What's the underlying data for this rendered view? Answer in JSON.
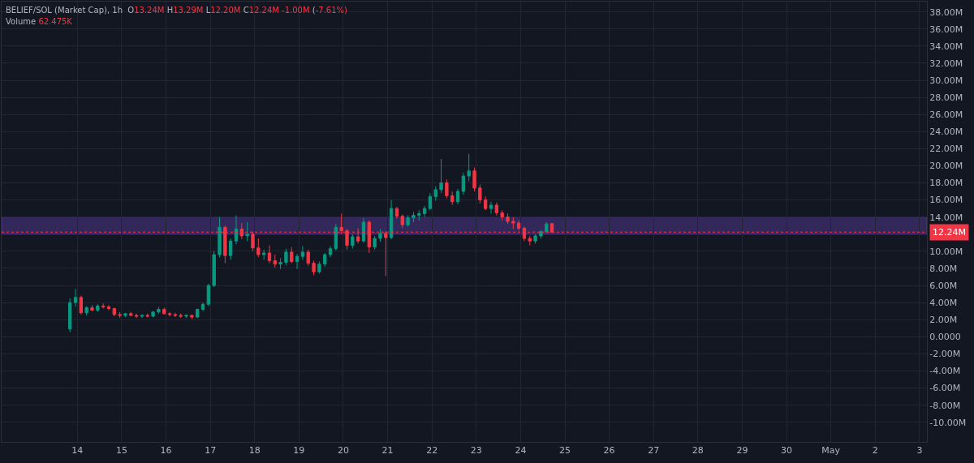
{
  "chart_data": {
    "type": "candlestick",
    "title": "BELIEF/SOL (Market Cap), 1h",
    "annotations": [
      "O13.24M H13.29M L12.20M C12.24M -1.00M (-7.61%)",
      "Volume 62.475K"
    ],
    "x": [
      "--04-13T20:00",
      "--04-13T23:00",
      "--04-14T02:00",
      "--04-14T05:00",
      "--04-14T08:00",
      "--04-14T11:00",
      "--04-14T14:00",
      "--04-14T17:00",
      "--04-14T20:00",
      "--04-14T23:00",
      "--04-15T02:00",
      "--04-15T05:00",
      "--04-15T08:00",
      "--04-15T11:00",
      "--04-15T14:00",
      "--04-15T17:00",
      "--04-15T20:00",
      "--04-15T23:00",
      "--04-16T02:00",
      "--04-16T05:00",
      "--04-16T08:00",
      "--04-16T11:00",
      "--04-16T14:00",
      "--04-16T17:00",
      "--04-16T20:00",
      "--04-16T23:00",
      "--04-17T02:00",
      "--04-17T05:00",
      "--04-17T08:00",
      "--04-17T11:00",
      "--04-17T14:00",
      "--04-17T17:00",
      "--04-17T20:00",
      "--04-17T23:00",
      "--04-18T02:00",
      "--04-18T05:00",
      "--04-18T08:00",
      "--04-18T11:00",
      "--04-18T14:00",
      "--04-18T17:00",
      "--04-18T20:00",
      "--04-18T23:00",
      "--04-19T02:00",
      "--04-19T05:00",
      "--04-19T08:00",
      "--04-19T11:00",
      "--04-19T14:00",
      "--04-19T17:00",
      "--04-19T20:00",
      "--04-19T23:00",
      "--04-20T02:00",
      "--04-20T05:00",
      "--04-20T08:00",
      "--04-20T11:00",
      "--04-20T14:00",
      "--04-20T17:00",
      "--04-20T20:00",
      "--04-20T23:00",
      "--04-21T02:00",
      "--04-21T05:00",
      "--04-21T08:00",
      "--04-21T11:00",
      "--04-21T14:00",
      "--04-21T17:00",
      "--04-21T20:00",
      "--04-21T23:00",
      "--04-22T02:00",
      "--04-22T05:00",
      "--04-22T08:00",
      "--04-22T11:00",
      "--04-22T14:00",
      "--04-22T17:00",
      "--04-22T20:00",
      "--04-22T23:00",
      "--04-23T02:00",
      "--04-23T05:00",
      "--04-23T08:00",
      "--04-23T11:00",
      "--04-23T14:00",
      "--04-23T17:00",
      "--04-23T20:00",
      "--04-23T23:00",
      "--04-24T02:00",
      "--04-24T05:00",
      "--04-24T08:00",
      "--04-24T11:00",
      "--04-24T14:00",
      "--04-24T17:00"
    ],
    "ohlc": [
      [
        0.9,
        4.5,
        0.5,
        4.0
      ],
      [
        4.0,
        5.6,
        3.5,
        4.6
      ],
      [
        4.6,
        4.8,
        2.6,
        2.8
      ],
      [
        2.8,
        3.6,
        2.5,
        3.4
      ],
      [
        3.4,
        3.7,
        3.0,
        3.1
      ],
      [
        3.1,
        3.8,
        2.9,
        3.6
      ],
      [
        3.6,
        3.9,
        3.3,
        3.5
      ],
      [
        3.5,
        3.7,
        3.1,
        3.3
      ],
      [
        3.3,
        3.4,
        2.4,
        2.6
      ],
      [
        2.6,
        2.9,
        2.2,
        2.5
      ],
      [
        2.5,
        2.8,
        2.3,
        2.7
      ],
      [
        2.7,
        2.9,
        2.4,
        2.5
      ],
      [
        2.5,
        2.7,
        2.2,
        2.4
      ],
      [
        2.4,
        2.6,
        2.2,
        2.5
      ],
      [
        2.5,
        2.7,
        2.3,
        2.4
      ],
      [
        2.4,
        3.0,
        2.3,
        2.9
      ],
      [
        2.9,
        3.5,
        2.7,
        3.2
      ],
      [
        3.2,
        3.4,
        2.6,
        2.7
      ],
      [
        2.7,
        2.9,
        2.4,
        2.6
      ],
      [
        2.6,
        2.8,
        2.3,
        2.5
      ],
      [
        2.5,
        2.7,
        2.2,
        2.4
      ],
      [
        2.4,
        2.6,
        2.2,
        2.5
      ],
      [
        2.5,
        2.6,
        2.1,
        2.3
      ],
      [
        2.3,
        3.3,
        2.2,
        3.2
      ],
      [
        3.2,
        4.0,
        3.0,
        3.8
      ],
      [
        3.8,
        6.2,
        3.6,
        6.0
      ],
      [
        6.0,
        10.0,
        5.8,
        9.6
      ],
      [
        9.6,
        14.0,
        9.3,
        12.8
      ],
      [
        12.8,
        13.0,
        8.6,
        9.5
      ],
      [
        9.5,
        11.5,
        9.0,
        11.2
      ],
      [
        11.2,
        14.2,
        10.8,
        12.6
      ],
      [
        12.6,
        13.3,
        11.4,
        11.8
      ],
      [
        11.8,
        13.4,
        11.2,
        12.0
      ],
      [
        12.0,
        12.3,
        10.0,
        10.4
      ],
      [
        10.4,
        11.5,
        9.3,
        9.6
      ],
      [
        9.6,
        10.2,
        9.0,
        9.8
      ],
      [
        9.8,
        10.7,
        8.6,
        8.9
      ],
      [
        8.9,
        9.6,
        8.1,
        8.5
      ],
      [
        8.5,
        9.2,
        7.9,
        8.7
      ],
      [
        8.7,
        10.3,
        8.4,
        9.9
      ],
      [
        9.9,
        10.5,
        8.6,
        8.8
      ],
      [
        8.8,
        9.7,
        7.9,
        9.4
      ],
      [
        9.4,
        10.6,
        9.0,
        9.9
      ],
      [
        9.9,
        10.2,
        8.3,
        8.6
      ],
      [
        8.6,
        8.9,
        7.2,
        7.6
      ],
      [
        7.6,
        8.8,
        7.4,
        8.5
      ],
      [
        8.5,
        9.8,
        8.2,
        9.6
      ],
      [
        9.6,
        10.6,
        9.3,
        10.3
      ],
      [
        10.3,
        13.2,
        10.1,
        12.8
      ],
      [
        12.8,
        14.4,
        12.0,
        12.4
      ],
      [
        12.4,
        12.6,
        10.2,
        10.7
      ],
      [
        10.7,
        12.0,
        10.3,
        11.7
      ],
      [
        11.7,
        12.7,
        10.9,
        11.2
      ],
      [
        11.2,
        13.9,
        11.0,
        13.4
      ],
      [
        13.4,
        13.6,
        9.8,
        10.5
      ],
      [
        10.5,
        11.8,
        10.2,
        11.5
      ],
      [
        11.5,
        12.6,
        11.1,
        12.1
      ],
      [
        12.1,
        12.4,
        7.1,
        11.6
      ],
      [
        11.6,
        16.0,
        11.4,
        15.0
      ],
      [
        15.0,
        15.2,
        13.8,
        14.1
      ],
      [
        14.1,
        14.3,
        12.7,
        13.1
      ],
      [
        13.1,
        14.2,
        12.9,
        13.9
      ],
      [
        13.9,
        14.6,
        13.4,
        14.2
      ],
      [
        14.2,
        14.8,
        13.6,
        14.4
      ],
      [
        14.4,
        15.3,
        14.0,
        15.0
      ],
      [
        15.0,
        16.8,
        14.8,
        16.4
      ],
      [
        16.4,
        17.6,
        15.9,
        17.2
      ],
      [
        17.2,
        20.8,
        16.8,
        18.0
      ],
      [
        18.0,
        18.4,
        16.2,
        16.5
      ],
      [
        16.5,
        17.0,
        15.4,
        15.8
      ],
      [
        15.8,
        17.3,
        15.5,
        17.0
      ],
      [
        17.0,
        19.2,
        16.6,
        18.8
      ],
      [
        18.8,
        21.4,
        18.2,
        19.4
      ],
      [
        19.4,
        19.8,
        17.0,
        17.4
      ],
      [
        17.4,
        17.8,
        15.6,
        16.0
      ],
      [
        16.0,
        16.4,
        14.8,
        15.0
      ],
      [
        15.0,
        15.8,
        14.4,
        15.4
      ],
      [
        15.4,
        15.7,
        14.2,
        14.5
      ],
      [
        14.5,
        14.8,
        13.6,
        14.0
      ],
      [
        14.0,
        14.4,
        13.2,
        13.5
      ],
      [
        13.5,
        14.0,
        12.6,
        13.3
      ],
      [
        13.3,
        13.6,
        12.4,
        12.7
      ],
      [
        12.7,
        12.9,
        11.2,
        11.5
      ],
      [
        11.5,
        11.8,
        10.7,
        11.2
      ],
      [
        11.2,
        12.0,
        10.9,
        11.8
      ],
      [
        11.8,
        12.5,
        11.5,
        12.3
      ],
      [
        12.3,
        13.4,
        12.1,
        13.2
      ],
      [
        13.24,
        13.29,
        12.2,
        12.24
      ]
    ],
    "colors": [
      "#089981",
      "#089981",
      "#f23645",
      "#089981",
      "#f23645",
      "#089981",
      "#f23645",
      "#f23645",
      "#f23645",
      "#f23645",
      "#089981",
      "#f23645",
      "#f23645",
      "#089981",
      "#f23645",
      "#089981",
      "#089981",
      "#f23645",
      "#f23645",
      "#f23645",
      "#f23645",
      "#089981",
      "#f23645",
      "#089981",
      "#089981",
      "#089981",
      "#089981",
      "#089981",
      "#f23645",
      "#089981",
      "#089981",
      "#f23645",
      "#089981",
      "#f23645",
      "#f23645",
      "#089981",
      "#f23645",
      "#f23645",
      "#089981",
      "#089981",
      "#f23645",
      "#089981",
      "#089981",
      "#f23645",
      "#f23645",
      "#089981",
      "#089981",
      "#089981",
      "#089981",
      "#f23645",
      "#f23645",
      "#089981",
      "#f23645",
      "#089981",
      "#f23645",
      "#089981",
      "#089981",
      "#f23645",
      "#089981",
      "#f23645",
      "#f23645",
      "#089981",
      "#089981",
      "#089981",
      "#089981",
      "#089981",
      "#089981",
      "#089981",
      "#f23645",
      "#f23645",
      "#089981",
      "#089981",
      "#089981",
      "#f23645",
      "#f23645",
      "#f23645",
      "#089981",
      "#f23645",
      "#f23645",
      "#f23645",
      "#f23645",
      "#f23645",
      "#f23645",
      "#f23645",
      "#089981",
      "#089981",
      "#089981",
      "#f23645"
    ],
    "xlim": [
      "--04-12T07:00",
      "--05-03T04:00"
    ],
    "xticks": [
      {
        "value": "--04-14",
        "label": "14"
      },
      {
        "value": "--04-15",
        "label": "15"
      },
      {
        "value": "--04-16",
        "label": "16"
      },
      {
        "value": "--04-17",
        "label": "17"
      },
      {
        "value": "--04-18",
        "label": "18"
      },
      {
        "value": "--04-19",
        "label": "19"
      },
      {
        "value": "--04-20",
        "label": "20"
      },
      {
        "value": "--04-21",
        "label": "21"
      },
      {
        "value": "--04-22",
        "label": "22"
      },
      {
        "value": "--04-23",
        "label": "23"
      },
      {
        "value": "--04-24",
        "label": "24"
      },
      {
        "value": "--04-25",
        "label": "25"
      },
      {
        "value": "--04-26",
        "label": "26"
      },
      {
        "value": "--04-27",
        "label": "27"
      },
      {
        "value": "--04-28",
        "label": "28"
      },
      {
        "value": "--04-29",
        "label": "29"
      },
      {
        "value": "--04-30",
        "label": "30"
      },
      {
        "value": "--05-01",
        "label": "May"
      },
      {
        "value": "--05-02",
        "label": "2"
      },
      {
        "value": "--05-03",
        "label": "3"
      }
    ],
    "ylim": [
      -12.3,
      39.2
    ],
    "yticks": [
      {
        "value": -10,
        "label": "-10.00M"
      },
      {
        "value": -8,
        "label": "-8.00M"
      },
      {
        "value": -6,
        "label": "-6.00M"
      },
      {
        "value": -4,
        "label": "-4.00M"
      },
      {
        "value": -2,
        "label": "-2.00M"
      },
      {
        "value": 0,
        "label": "0.0000"
      },
      {
        "value": 2,
        "label": "2.00M"
      },
      {
        "value": 4,
        "label": "4.00M"
      },
      {
        "value": 6,
        "label": "6.00M"
      },
      {
        "value": 8,
        "label": "8.00M"
      },
      {
        "value": 10,
        "label": "10.00M"
      },
      {
        "value": 14,
        "label": "14.00M"
      },
      {
        "value": 16,
        "label": "16.00M"
      },
      {
        "value": 18,
        "label": "18.00M"
      },
      {
        "value": 20,
        "label": "20.00M"
      },
      {
        "value": 22,
        "label": "22.00M"
      },
      {
        "value": 24,
        "label": "24.00M"
      },
      {
        "value": 26,
        "label": "26.00M"
      },
      {
        "value": 28,
        "label": "28.00M"
      },
      {
        "value": 30,
        "label": "30.00M"
      },
      {
        "value": 32,
        "label": "32.00M"
      },
      {
        "value": 34,
        "label": "34.00M"
      },
      {
        "value": 36,
        "label": "36.00M"
      },
      {
        "value": 38,
        "label": "38.00M"
      }
    ],
    "ref_lines": [
      {
        "axis": "y",
        "value": 12.24,
        "label": "12.24M",
        "color": "#f23645",
        "line_style": "dotted"
      }
    ],
    "bands": [
      {
        "axis": "y",
        "from": 12.0,
        "to": 14.0,
        "color": "#5b3fa0"
      }
    ],
    "grid": true,
    "legend": false
  }
}
